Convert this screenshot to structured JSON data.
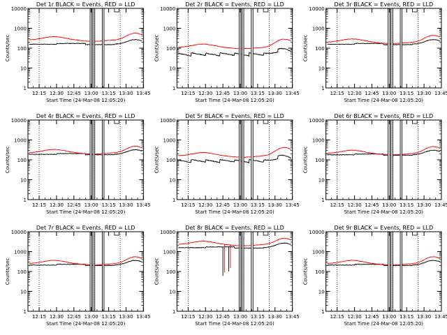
{
  "chart_data": [
    {
      "type": "line",
      "title": "Det 1r BLACK = Events, RED = LLD",
      "ylabel": "Counts/sec",
      "xlabel": "Start Time (24-Mar-08 12:05:20)",
      "x_ticks": [
        "12:15",
        "12:30",
        "12:45",
        "13:00",
        "13:15",
        "13:30",
        "13:45"
      ],
      "x_minutes": [
        15,
        30,
        45,
        60,
        75,
        90,
        105
      ],
      "xlim": [
        5.33,
        105
      ],
      "ylim": [
        1,
        10000
      ],
      "y_ticks": [
        "1",
        "10",
        "100",
        "1000",
        "10000"
      ],
      "y_scale": "log",
      "legend": "none",
      "series": [
        {
          "name": "Events",
          "color": "#000000",
          "base": 150,
          "kind": "flat"
        },
        {
          "name": "LLD",
          "color": "#ff0000",
          "base": 260,
          "kind": "hump",
          "amp": 1.8
        }
      ],
      "gaps": [
        [
          59.0,
          60.5
        ],
        [
          61.5,
          63.0
        ],
        [
          69.5,
          71.0
        ]
      ],
      "dotted_x": [
        15,
        63,
        85
      ]
    },
    {
      "type": "line",
      "title": "Det 2r BLACK = Events, RED = LLD",
      "ylabel": "Counts/sec",
      "xlabel": "Start Time (24-Mar-08 12:05:20)",
      "x_ticks": [
        "12:15",
        "12:30",
        "12:45",
        "13:00",
        "13:15",
        "13:30",
        "13:45"
      ],
      "x_minutes": [
        15,
        30,
        45,
        60,
        75,
        90,
        105
      ],
      "xlim": [
        5.33,
        105
      ],
      "ylim": [
        1,
        10000
      ],
      "y_ticks": [
        "1",
        "10",
        "100",
        "1000",
        "10000"
      ],
      "y_scale": "log",
      "legend": "none",
      "series": [
        {
          "name": "Events",
          "color": "#000000",
          "base": 45,
          "kind": "steps"
        },
        {
          "name": "LLD",
          "color": "#ff0000",
          "base": 110,
          "kind": "hump",
          "amp": 2.2
        }
      ],
      "gaps": [
        [
          59.0,
          60.5
        ],
        [
          61.5,
          63.0
        ],
        [
          69.5,
          71.0
        ]
      ],
      "dotted_x": [
        15,
        63,
        85
      ]
    },
    {
      "type": "line",
      "title": "Det 3r BLACK = Events, RED = LLD",
      "ylabel": "Counts/sec",
      "xlabel": "Start Time (24-Mar-08 12:05:20)",
      "x_ticks": [
        "12:15",
        "12:30",
        "12:45",
        "13:00",
        "13:15",
        "13:30",
        "13:45"
      ],
      "x_minutes": [
        15,
        30,
        45,
        60,
        75,
        90,
        105
      ],
      "xlim": [
        5.33,
        105
      ],
      "ylim": [
        1,
        10000
      ],
      "y_ticks": [
        "1",
        "10",
        "100",
        "1000",
        "10000"
      ],
      "y_scale": "log",
      "legend": "none",
      "series": [
        {
          "name": "Events",
          "color": "#000000",
          "base": 150,
          "kind": "flat"
        },
        {
          "name": "LLD",
          "color": "#ff0000",
          "base": 200,
          "kind": "hump",
          "amp": 1.8
        }
      ],
      "gaps": [
        [
          59.0,
          60.5
        ],
        [
          61.5,
          63.0
        ],
        [
          69.5,
          71.0
        ]
      ],
      "dotted_x": [
        15,
        63,
        85
      ]
    },
    {
      "type": "line",
      "title": "Det 4r BLACK = Events, RED = LLD",
      "ylabel": "Counts/sec",
      "xlabel": "Start Time (24-Mar-08 12:05:20)",
      "x_ticks": [
        "12:15",
        "12:30",
        "12:45",
        "13:00",
        "13:15",
        "13:30",
        "13:45"
      ],
      "x_minutes": [
        15,
        30,
        45,
        60,
        75,
        90,
        105
      ],
      "xlim": [
        5.33,
        105
      ],
      "ylim": [
        1,
        10000
      ],
      "y_ticks": [
        "1",
        "10",
        "100",
        "1000",
        "10000"
      ],
      "y_scale": "log",
      "legend": "none",
      "series": [
        {
          "name": "Events",
          "color": "#000000",
          "base": 180,
          "kind": "flat"
        },
        {
          "name": "LLD",
          "color": "#ff0000",
          "base": 230,
          "kind": "hump",
          "amp": 1.7
        }
      ],
      "gaps": [
        [
          59.0,
          60.5
        ],
        [
          61.5,
          63.0
        ],
        [
          69.5,
          71.0
        ]
      ],
      "dotted_x": [
        15,
        63,
        85
      ]
    },
    {
      "type": "line",
      "title": "Det 5r BLACK = Events, RED = LLD",
      "ylabel": "Counts/sec",
      "xlabel": "Start Time (24-Mar-08 12:05:20)",
      "x_ticks": [
        "12:15",
        "12:30",
        "12:45",
        "13:00",
        "13:15",
        "13:30",
        "13:45"
      ],
      "x_minutes": [
        15,
        30,
        45,
        60,
        75,
        90,
        105
      ],
      "xlim": [
        5.33,
        105
      ],
      "ylim": [
        1,
        10000
      ],
      "y_ticks": [
        "1",
        "10",
        "100",
        "1000",
        "10000"
      ],
      "y_scale": "log",
      "legend": "none",
      "series": [
        {
          "name": "Events",
          "color": "#000000",
          "base": 80,
          "kind": "steps"
        },
        {
          "name": "LLD",
          "color": "#ff0000",
          "base": 160,
          "kind": "hump",
          "amp": 2.2
        }
      ],
      "gaps": [
        [
          59.0,
          60.5
        ],
        [
          61.5,
          63.0
        ],
        [
          69.5,
          71.0
        ]
      ],
      "dotted_x": [
        15,
        63,
        85
      ]
    },
    {
      "type": "line",
      "title": "Det 6r BLACK = Events, RED = LLD",
      "ylabel": "Counts/sec",
      "xlabel": "Start Time (24-Mar-08 12:05:20)",
      "x_ticks": [
        "12:15",
        "12:30",
        "12:45",
        "13:00",
        "13:15",
        "13:30",
        "13:45"
      ],
      "x_minutes": [
        15,
        30,
        45,
        60,
        75,
        90,
        105
      ],
      "xlim": [
        5.33,
        105
      ],
      "ylim": [
        1,
        10000
      ],
      "y_ticks": [
        "1",
        "10",
        "100",
        "1000",
        "10000"
      ],
      "y_scale": "log",
      "legend": "none",
      "series": [
        {
          "name": "Events",
          "color": "#000000",
          "base": 170,
          "kind": "flat"
        },
        {
          "name": "LLD",
          "color": "#ff0000",
          "base": 210,
          "kind": "hump",
          "amp": 1.8
        }
      ],
      "gaps": [
        [
          59.0,
          60.5
        ],
        [
          61.5,
          63.0
        ],
        [
          69.5,
          71.0
        ]
      ],
      "dotted_x": [
        15,
        63,
        85
      ]
    },
    {
      "type": "line",
      "title": "Det 7r BLACK = Events, RED = LLD",
      "ylabel": "Counts/sec",
      "xlabel": "Start Time (24-Mar-08 12:05:20)",
      "x_ticks": [
        "12:15",
        "12:30",
        "12:45",
        "13:00",
        "13:15",
        "13:30",
        "13:45"
      ],
      "x_minutes": [
        15,
        30,
        45,
        60,
        75,
        90,
        105
      ],
      "xlim": [
        5.33,
        105
      ],
      "ylim": [
        1,
        10000
      ],
      "y_ticks": [
        "1",
        "10",
        "100",
        "1000",
        "10000"
      ],
      "y_scale": "log",
      "legend": "none",
      "series": [
        {
          "name": "Events",
          "color": "#000000",
          "base": 200,
          "kind": "flat"
        },
        {
          "name": "LLD",
          "color": "#ff0000",
          "base": 250,
          "kind": "hump",
          "amp": 1.8
        }
      ],
      "gaps": [
        [
          59.0,
          60.5
        ],
        [
          61.5,
          63.0
        ],
        [
          69.5,
          71.0
        ]
      ],
      "dotted_x": [
        15,
        63,
        85
      ]
    },
    {
      "type": "line",
      "title": "Det 8r BLACK = Events, RED = LLD",
      "ylabel": "Counts/sec",
      "xlabel": "Start Time (24-Mar-08 12:05:20)",
      "x_ticks": [
        "12:15",
        "12:30",
        "12:45",
        "13:00",
        "13:15",
        "13:30",
        "13:45"
      ],
      "x_minutes": [
        15,
        30,
        45,
        60,
        75,
        90,
        105
      ],
      "xlim": [
        5.33,
        105
      ],
      "ylim": [
        1,
        10000
      ],
      "y_ticks": [
        "1",
        "10",
        "100",
        "1000",
        "10000"
      ],
      "y_scale": "log",
      "legend": "none",
      "series": [
        {
          "name": "Events",
          "color": "#000000",
          "base": 1500,
          "kind": "flat"
        },
        {
          "name": "LLD",
          "color": "#ff0000",
          "base": 2300,
          "kind": "hump",
          "amp": 1.6
        }
      ],
      "gaps": [
        [
          59.0,
          60.5
        ],
        [
          61.5,
          63.0
        ],
        [
          69.5,
          71.0
        ]
      ],
      "dotted_x": [
        15,
        63,
        85
      ],
      "dips": [
        {
          "x": 45,
          "to": 60
        },
        {
          "x": 50,
          "to": 100
        }
      ]
    },
    {
      "type": "line",
      "title": "Det 9r BLACK = Events, RED = LLD",
      "ylabel": "Counts/sec",
      "xlabel": "Start Time (24-Mar-08 12:05:20)",
      "x_ticks": [
        "12:15",
        "12:30",
        "12:45",
        "13:00",
        "13:15",
        "13:30",
        "13:45"
      ],
      "x_minutes": [
        15,
        30,
        45,
        60,
        75,
        90,
        105
      ],
      "xlim": [
        5.33,
        105
      ],
      "ylim": [
        1,
        10000
      ],
      "y_ticks": [
        "1",
        "10",
        "100",
        "1000",
        "10000"
      ],
      "y_scale": "log",
      "legend": "none",
      "series": [
        {
          "name": "Events",
          "color": "#000000",
          "base": 200,
          "kind": "flat"
        },
        {
          "name": "LLD",
          "color": "#ff0000",
          "base": 250,
          "kind": "hump",
          "amp": 1.8
        }
      ],
      "gaps": [
        [
          59.0,
          60.5
        ],
        [
          61.5,
          63.0
        ],
        [
          69.5,
          71.0
        ]
      ],
      "dotted_x": [
        15,
        63,
        85
      ]
    }
  ]
}
